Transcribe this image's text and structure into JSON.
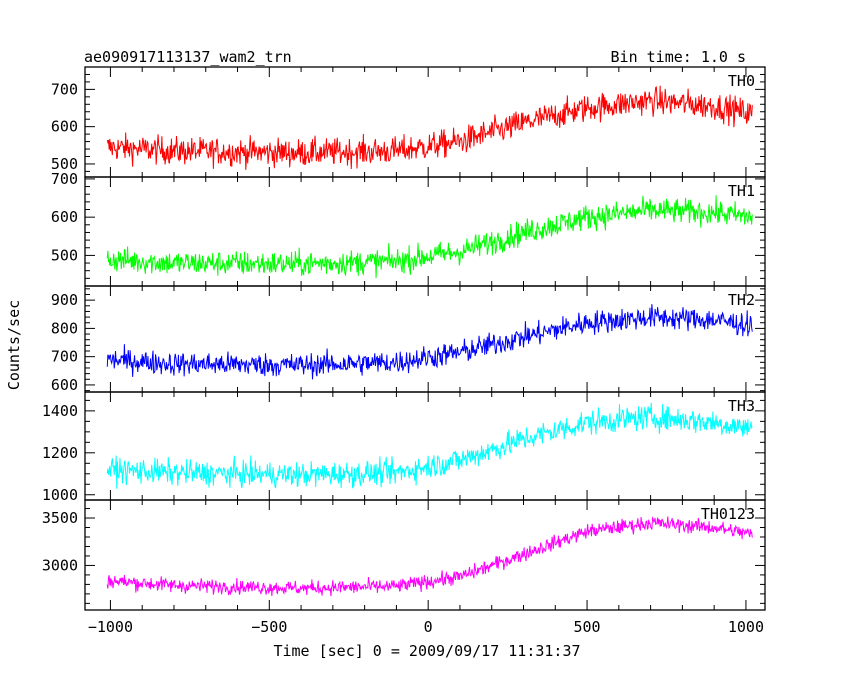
{
  "header": {
    "title": "ae090917113137_wam2_trn",
    "bin_time": "Bin time: 1.0 s"
  },
  "chart_data": {
    "type": "line",
    "title": "ae090917113137_wam2_trn",
    "subtitle": "Bin time: 1.0 s",
    "xlabel": "Time [sec] 0 = 2009/09/17 11:31:37",
    "ylabel": "Counts/sec",
    "xlim": [
      -1080,
      1060
    ],
    "x_ticks": [
      -1000,
      -500,
      0,
      500,
      1000
    ],
    "x_tick_labels": [
      "−1000",
      "−500",
      "0",
      "500",
      "1000"
    ],
    "x_range": [
      -1010,
      1020
    ],
    "grid": false,
    "panels": [
      {
        "name": "TH0",
        "color": "#ff0000",
        "ylim": [
          465,
          760
        ],
        "y_ticks": [
          500,
          600,
          700
        ],
        "y_tick_labels": [
          "500",
          "600",
          "700"
        ],
        "trend": [
          [
            -1010,
            545
          ],
          [
            -800,
            535
          ],
          [
            -400,
            530
          ],
          [
            -100,
            535
          ],
          [
            100,
            560
          ],
          [
            300,
            610
          ],
          [
            500,
            650
          ],
          [
            700,
            670
          ],
          [
            900,
            655
          ],
          [
            1020,
            635
          ]
        ],
        "noise": 34
      },
      {
        "name": "TH1",
        "color": "#00ff00",
        "ylim": [
          420,
          705
        ],
        "y_ticks": [
          500,
          600,
          700
        ],
        "y_tick_labels": [
          "500",
          "600",
          "700"
        ],
        "trend": [
          [
            -1010,
            490
          ],
          [
            -800,
            480
          ],
          [
            -400,
            478
          ],
          [
            -100,
            485
          ],
          [
            100,
            510
          ],
          [
            300,
            560
          ],
          [
            500,
            600
          ],
          [
            700,
            618
          ],
          [
            900,
            612
          ],
          [
            1020,
            600
          ]
        ],
        "noise": 30
      },
      {
        "name": "TH2",
        "color": "#0000ff",
        "ylim": [
          575,
          950
        ],
        "y_ticks": [
          600,
          700,
          800,
          900
        ],
        "y_tick_labels": [
          "600",
          "700",
          "800",
          "900"
        ],
        "trend": [
          [
            -1010,
            690
          ],
          [
            -800,
            675
          ],
          [
            -400,
            670
          ],
          [
            -100,
            680
          ],
          [
            100,
            715
          ],
          [
            300,
            770
          ],
          [
            500,
            820
          ],
          [
            700,
            840
          ],
          [
            900,
            830
          ],
          [
            1020,
            810
          ]
        ],
        "noise": 38
      },
      {
        "name": "TH3",
        "color": "#00ffff",
        "ylim": [
          975,
          1490
        ],
        "y_ticks": [
          1000,
          1200,
          1400
        ],
        "y_tick_labels": [
          "1000",
          "1200",
          "1400"
        ],
        "trend": [
          [
            -1010,
            1120
          ],
          [
            -800,
            1105
          ],
          [
            -400,
            1095
          ],
          [
            -100,
            1105
          ],
          [
            100,
            1165
          ],
          [
            300,
            1265
          ],
          [
            500,
            1345
          ],
          [
            700,
            1370
          ],
          [
            900,
            1345
          ],
          [
            1020,
            1315
          ]
        ],
        "noise": 55
      },
      {
        "name": "TH0123",
        "color": "#ff00ff",
        "ylim": [
          2530,
          3690
        ],
        "y_ticks": [
          3000,
          3500
        ],
        "y_tick_labels": [
          "3000",
          "3500"
        ],
        "trend": [
          [
            -1010,
            2840
          ],
          [
            -800,
            2790
          ],
          [
            -400,
            2760
          ],
          [
            -100,
            2780
          ],
          [
            100,
            2880
          ],
          [
            300,
            3120
          ],
          [
            500,
            3360
          ],
          [
            700,
            3450
          ],
          [
            900,
            3400
          ],
          [
            1020,
            3330
          ]
        ],
        "noise": 70
      }
    ]
  }
}
